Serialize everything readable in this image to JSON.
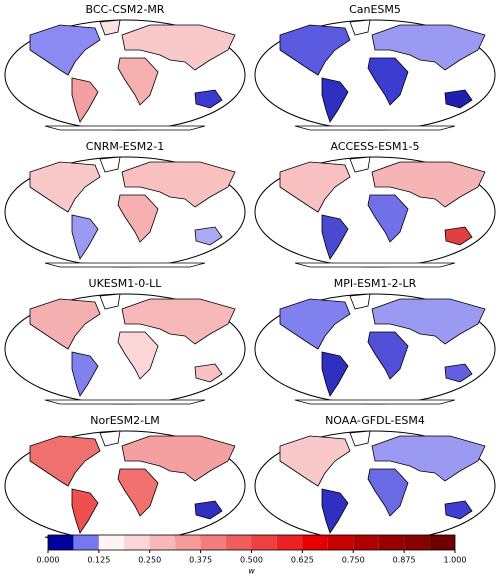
{
  "panels": [
    {
      "title": "BCC-CSM2-MR"
    },
    {
      "title": "CanESM5"
    },
    {
      "title": "CNRM-ESM2-1"
    },
    {
      "title": "ACCESS-ESM1-5"
    },
    {
      "title": "UKESM1-0-LL"
    },
    {
      "title": "MPI-ESM1-2-LR"
    },
    {
      "title": "NorESM2-LM"
    },
    {
      "title": "NOAA-GFDL-ESM4"
    }
  ],
  "colorbar": {
    "label": "w",
    "bounds": [
      0,
      0.0625,
      0.125,
      0.1875,
      0.25,
      0.3125,
      0.375,
      0.4375,
      0.5,
      0.5625,
      0.625,
      0.6875,
      0.75,
      0.8125,
      0.875,
      0.9375,
      1
    ],
    "colors": [
      "#00009c",
      "#7777f0",
      "#fff4f4",
      "#fcd6d6",
      "#f9b8b8",
      "#f69a9a",
      "#f37c7c",
      "#f05e5e",
      "#ed4040",
      "#ea2222",
      "#e60000",
      "#c80000",
      "#b00000",
      "#980000",
      "#880000",
      "#700000"
    ],
    "ticks": [
      {
        "value": 0,
        "label": "0.000"
      },
      {
        "value": 0.125,
        "label": "0.125"
      },
      {
        "value": 0.25,
        "label": "0.250"
      },
      {
        "value": 0.375,
        "label": "0.375"
      },
      {
        "value": 0.5,
        "label": "0.500"
      },
      {
        "value": 0.625,
        "label": "0.625"
      },
      {
        "value": 0.75,
        "label": "0.750"
      },
      {
        "value": 0.875,
        "label": "0.875"
      },
      {
        "value": 1,
        "label": "1.000"
      }
    ]
  }
}
